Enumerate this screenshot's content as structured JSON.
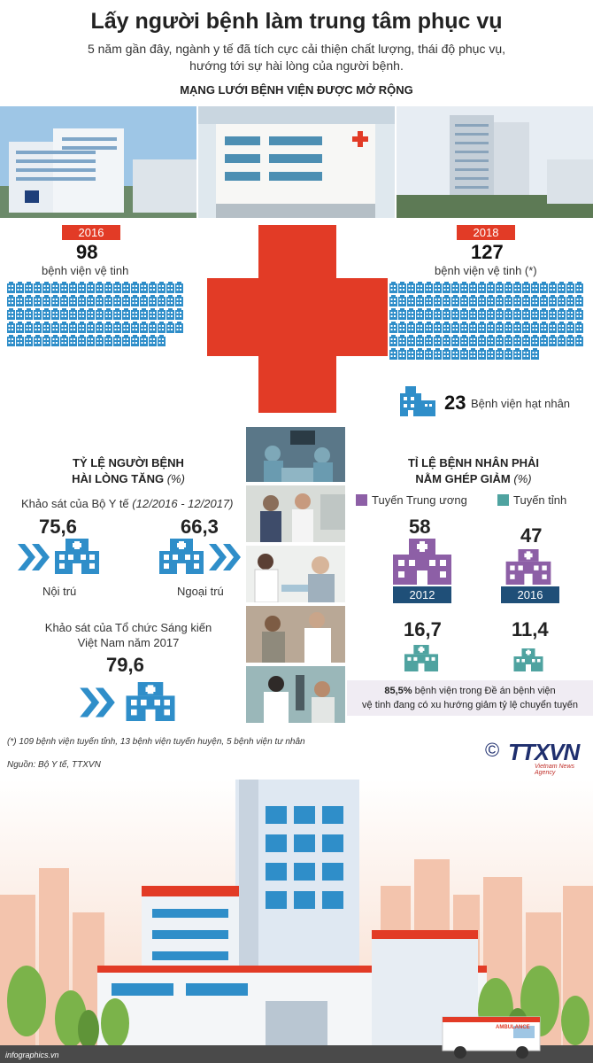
{
  "header": {
    "title": "Lấy người bệnh làm trung tâm phục vụ",
    "subtitle_line1": "5 năm gần đây, ngành y tế đã tích cực cải thiện chất lượng, thái độ phục vụ,",
    "subtitle_line2": "hướng tới sự hài lòng của người bệnh.",
    "network_heading": "MẠNG LƯỚI BỆNH VIỆN ĐƯỢC MỞ RỘNG"
  },
  "network": {
    "left": {
      "year": "2016",
      "count": "98",
      "label": "bệnh viện vệ tinh",
      "icon_count": 98
    },
    "right": {
      "year": "2018",
      "count": "127",
      "label": "bệnh viện vệ tinh (*)",
      "icon_count": 127
    },
    "nuclear": {
      "count": "23",
      "label": "Bệnh viện hạt nhân"
    }
  },
  "satisfaction": {
    "heading_line1": "TỶ LỆ NGƯỜI BỆNH",
    "heading_line2": "HÀI LÒNG TĂNG",
    "heading_unit": "(%)",
    "survey1": "Khảo sát của Bộ Y tế",
    "survey1_period": "(12/2016 - 12/2017)",
    "inpatient_value": "75,6",
    "inpatient_label": "Nội trú",
    "outpatient_value": "66,3",
    "outpatient_label": "Ngoại trú",
    "survey2_line1": "Khảo sát của Tổ chức Sáng kiến",
    "survey2_line2": "Việt Nam năm 2017",
    "survey2_value": "79,6"
  },
  "referral": {
    "heading_line1": "TỈ LỆ BỆNH NHÂN PHẢI",
    "heading_line2": "NẰM GHÉP GIẢM",
    "heading_unit": "(%)",
    "legend_central": "Tuyến Trung ương",
    "legend_province": "Tuyến tỉnh",
    "central_2012": "58",
    "central_2016": "47",
    "year_a": "2012",
    "year_b": "2016",
    "province_2012": "16,7",
    "province_2016": "11,4",
    "note_bold": "85,5%",
    "note_rest_line1": " bệnh viện trong Đề án bệnh viện",
    "note_line2": "vệ tinh đang có xu hướng giảm tỷ lệ chuyển tuyến"
  },
  "footer": {
    "footnote": "(*) 109 bệnh viện tuyến tỉnh, 13 bệnh viện tuyến huyện, 5 bệnh viện tư nhân",
    "source": "Nguồn: Bộ Y tế, TTXVN",
    "copyright_symbol": "©",
    "logo": "TTXVN",
    "logo_tagline": "Vietnam News Agency",
    "ambulance_label": "AMBULANCE",
    "website": "infographics.vn"
  },
  "colors": {
    "red": "#e23b26",
    "blue_icon": "#2f8ec9",
    "purple": "#8d5fa6",
    "teal": "#4fa3a0",
    "navy": "#1f4f78"
  }
}
